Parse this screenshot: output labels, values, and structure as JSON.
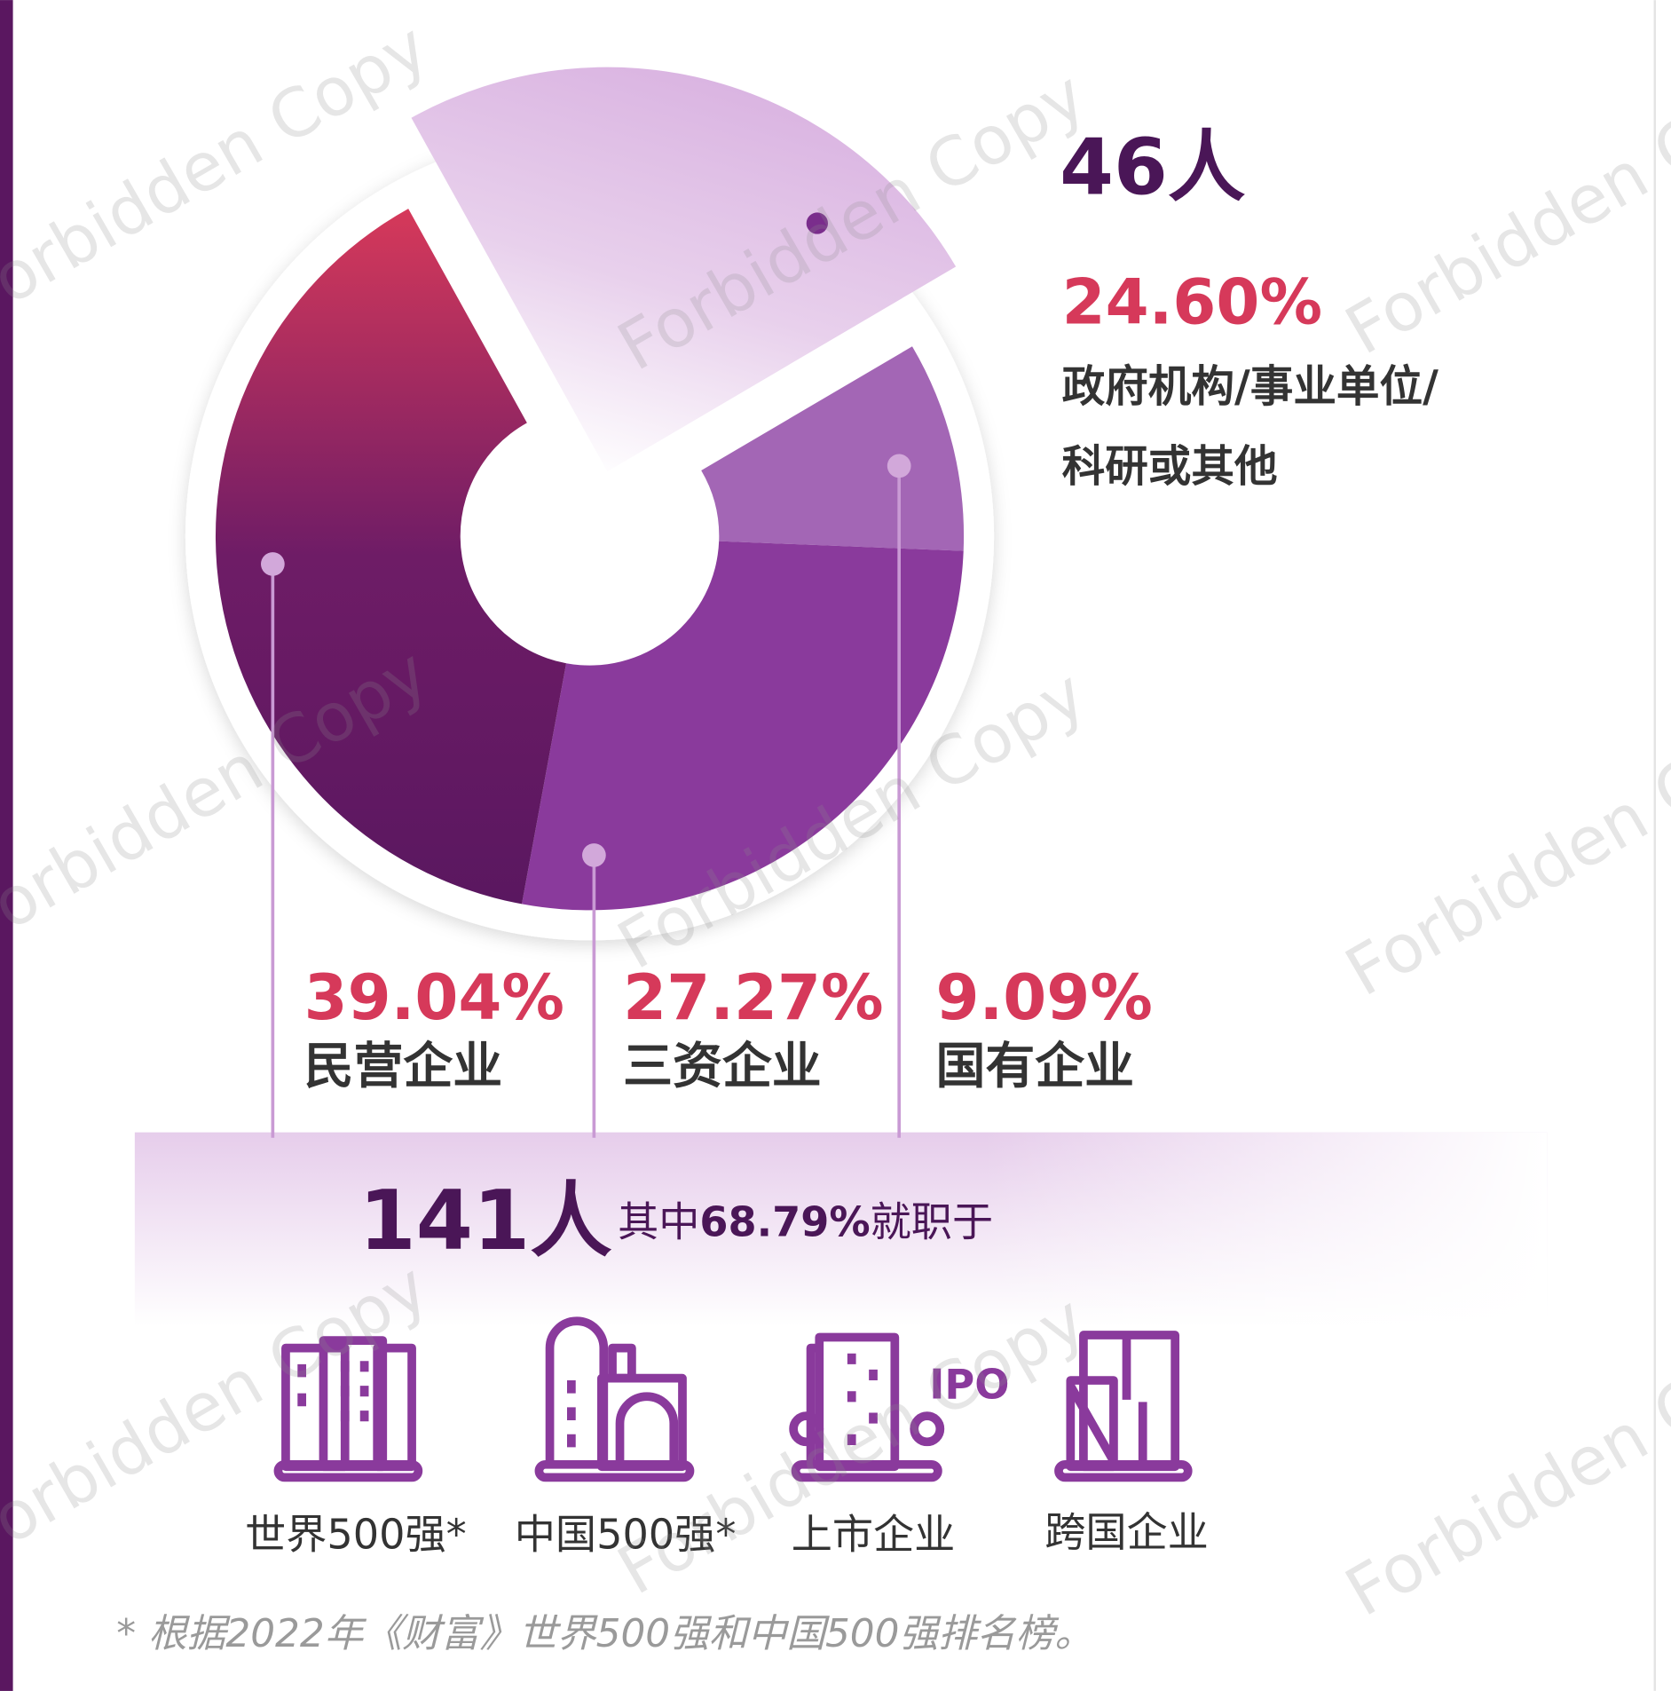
{
  "chart_data": {
    "type": "pie",
    "donut": true,
    "categories": [
      "政府机构/事业单位/科研或其他",
      "国有企业",
      "三资企业",
      "民营企业"
    ],
    "values": [
      24.6,
      9.09,
      27.27,
      39.04
    ],
    "value_labels": [
      "24.60%",
      "9.09%",
      "27.27%",
      "39.04%"
    ],
    "colors": [
      "#d8b0e0",
      "#a366b5",
      "#8a3a9c",
      "#5a1760"
    ],
    "counts": {
      "top": "46人",
      "bottom": "141人"
    },
    "intro": {
      "prefix": "其中",
      "highlight": "68.79%",
      "suffix": "就职于"
    },
    "icons": [
      "世界500强*",
      "中国500强*",
      "上市企业",
      "跨国企业"
    ],
    "icon_text": "IPO",
    "footnote": "* 根据2022年《财富》世界500强和中国500强排名榜。",
    "watermark": "Forbidden Copy"
  }
}
